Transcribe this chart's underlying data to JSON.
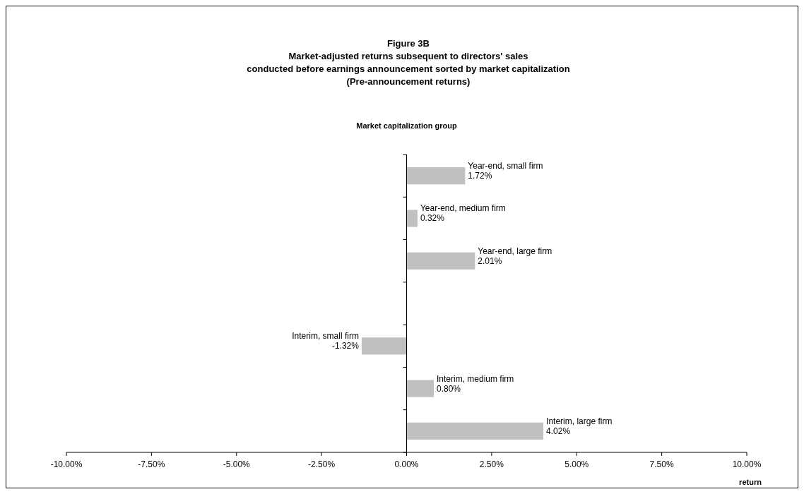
{
  "chart_data": {
    "type": "bar",
    "orientation": "horizontal",
    "title": "Figure 3B",
    "subtitle": "Market-adjusted returns subsequent to directors' sales\nconducted before earnings announcement sorted by market capitalization\n(Pre-announcement returns)",
    "ylabel": "Market capitalization group",
    "xlabel": "return",
    "categories": [
      "Year-end, small firm",
      "Year-end, medium firm",
      "Year-end, large firm",
      null,
      "Interim, small firm",
      "Interim, medium firm",
      "Interim, large firm"
    ],
    "values": [
      1.72,
      0.32,
      2.01,
      null,
      -1.32,
      0.8,
      4.02
    ],
    "value_labels": [
      "1.72%",
      "0.32%",
      "2.01%",
      null,
      "-1.32%",
      "0.80%",
      "4.02%"
    ],
    "color": "#c0c0c0",
    "xlim": [
      -10,
      10
    ],
    "xticks": [
      {
        "value": -10,
        "label": "-10.00%"
      },
      {
        "value": -7.5,
        "label": "-7.50%"
      },
      {
        "value": -5,
        "label": "-5.00%"
      },
      {
        "value": -2.5,
        "label": "-2.50%"
      },
      {
        "value": 0,
        "label": "0.00%"
      },
      {
        "value": 2.5,
        "label": "2.50%"
      },
      {
        "value": 5,
        "label": "5.00%"
      },
      {
        "value": 7.5,
        "label": "7.50%"
      },
      {
        "value": 10,
        "label": "10.00%"
      }
    ],
    "tick_labels": "x"
  }
}
